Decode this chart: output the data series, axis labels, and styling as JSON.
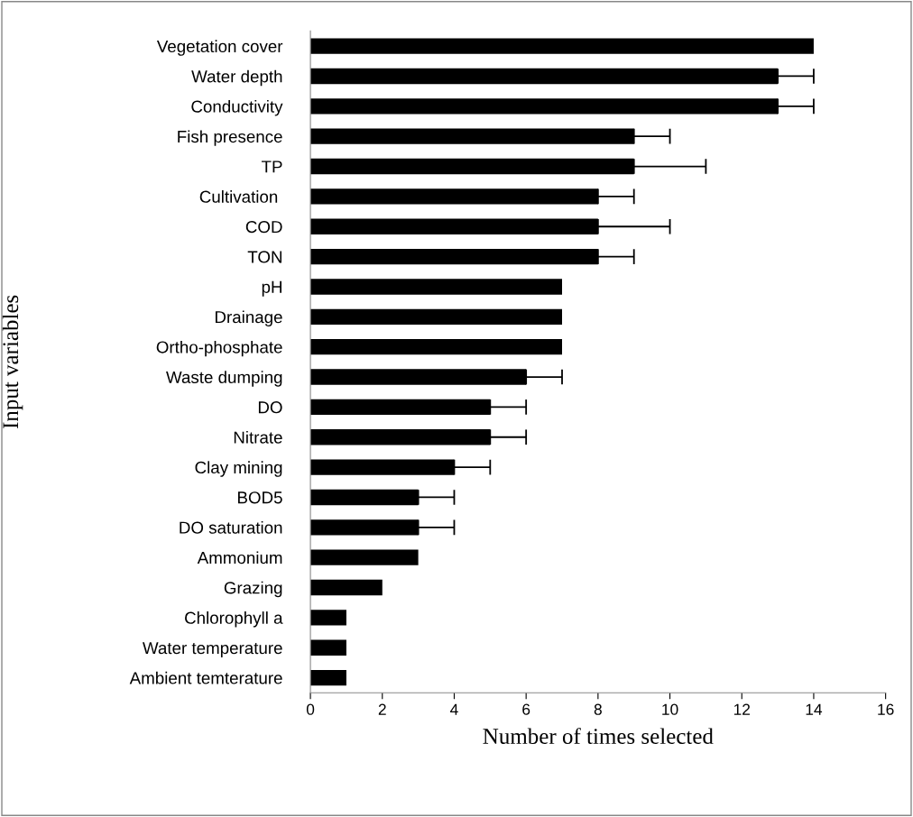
{
  "chart_data": {
    "type": "bar",
    "orientation": "horizontal",
    "xlabel": "Number of times selected",
    "ylabel": "Input variables",
    "categories": [
      "Vegetation cover",
      "Water depth",
      "Conductivity",
      "Fish presence",
      "TP",
      "Cultivation ",
      "COD",
      "TON",
      "pH",
      "Drainage",
      "Ortho-phosphate",
      "Waste dumping",
      "DO",
      "Nitrate",
      "Clay mining",
      "BOD5",
      "DO saturation",
      "Ammonium",
      "Grazing",
      "Chlorophyll a",
      "Water temperature",
      "Ambient temterature"
    ],
    "values": [
      14,
      13,
      13,
      9,
      9,
      8,
      8,
      8,
      7,
      7,
      7,
      6,
      5,
      5,
      4,
      3,
      3,
      3,
      2,
      1,
      1,
      1
    ],
    "errors": [
      null,
      [
        13,
        14
      ],
      [
        13,
        14
      ],
      [
        9,
        10
      ],
      [
        9,
        11
      ],
      [
        8,
        9
      ],
      [
        8,
        10
      ],
      [
        8,
        9
      ],
      null,
      null,
      null,
      [
        6,
        7
      ],
      [
        5,
        6
      ],
      [
        5,
        6
      ],
      [
        4,
        5
      ],
      [
        3,
        4
      ],
      [
        3,
        4
      ],
      null,
      null,
      null,
      null,
      null
    ],
    "color": "#000000",
    "xlim": [
      0,
      16
    ],
    "xticks": [
      0,
      2,
      4,
      6,
      8,
      10,
      12,
      14,
      16
    ],
    "grid": false,
    "legend": false
  }
}
